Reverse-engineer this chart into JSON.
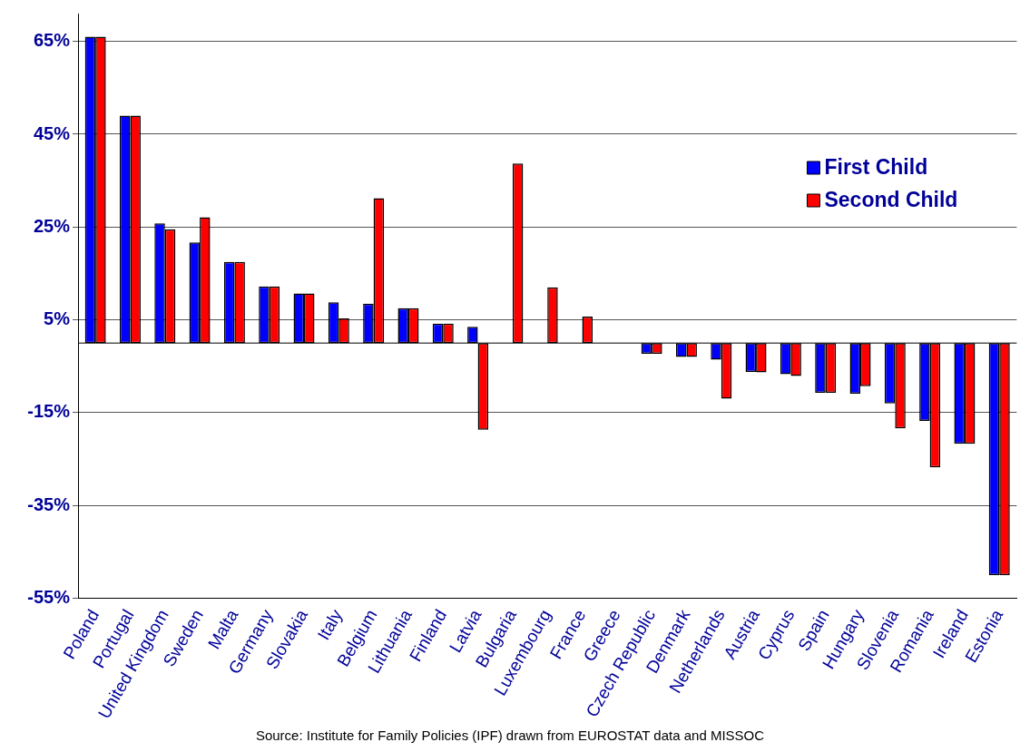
{
  "chart_data": {
    "type": "bar",
    "categories": [
      "Poland",
      "Portugal",
      "United Kingdom",
      "Sweden",
      "Malta",
      "Germany",
      "Slovakia",
      "Italy",
      "Belgium",
      "Lithuania",
      "Finland",
      "Latvia",
      "Bulgaria",
      "Luxembourg",
      "France",
      "Greece",
      "Czech Republic",
      "Denmark",
      "Netherlands",
      "Austria",
      "Cyprus",
      "Spain",
      "Hungary",
      "Slovenia",
      "Romania",
      "Ireland",
      "Estonia"
    ],
    "series": [
      {
        "name": "First Child",
        "color": "#0000ff",
        "values": [
          66,
          49,
          25.8,
          21.7,
          17.5,
          12.2,
          10.7,
          8.8,
          8.5,
          7.5,
          4.2,
          3.5,
          null,
          null,
          null,
          null,
          -2.3,
          -3,
          -3.6,
          -6.2,
          -6.7,
          -10.7,
          -10.9,
          -13,
          -16.8,
          -21.7,
          -50
        ]
      },
      {
        "name": "Second Child",
        "color": "#ff0000",
        "values": [
          66,
          49,
          24.5,
          27.1,
          17.5,
          12.2,
          10.7,
          5.3,
          31.2,
          7.5,
          4.2,
          -18.7,
          38.7,
          12,
          5.7,
          null,
          -2.3,
          -3,
          -12,
          -6.3,
          -7.1,
          -10.7,
          -9.3,
          -18.4,
          -26.8,
          -21.7,
          -50
        ]
      }
    ],
    "ylim": [
      -55,
      71
    ],
    "yticks": [
      {
        "value": -55,
        "label": "-55%"
      },
      {
        "value": -35,
        "label": "-35%"
      },
      {
        "value": -15,
        "label": "-15%"
      },
      {
        "value": 5,
        "label": "5%"
      },
      {
        "value": 25,
        "label": "25%"
      },
      {
        "value": 45,
        "label": "45%"
      },
      {
        "value": 65,
        "label": "65%"
      }
    ],
    "grid": "y",
    "legend": "top right",
    "annotations": [
      "Source: Institute for Family Policies (IPF) drawn from EUROSTAT data and MISSOC"
    ]
  }
}
